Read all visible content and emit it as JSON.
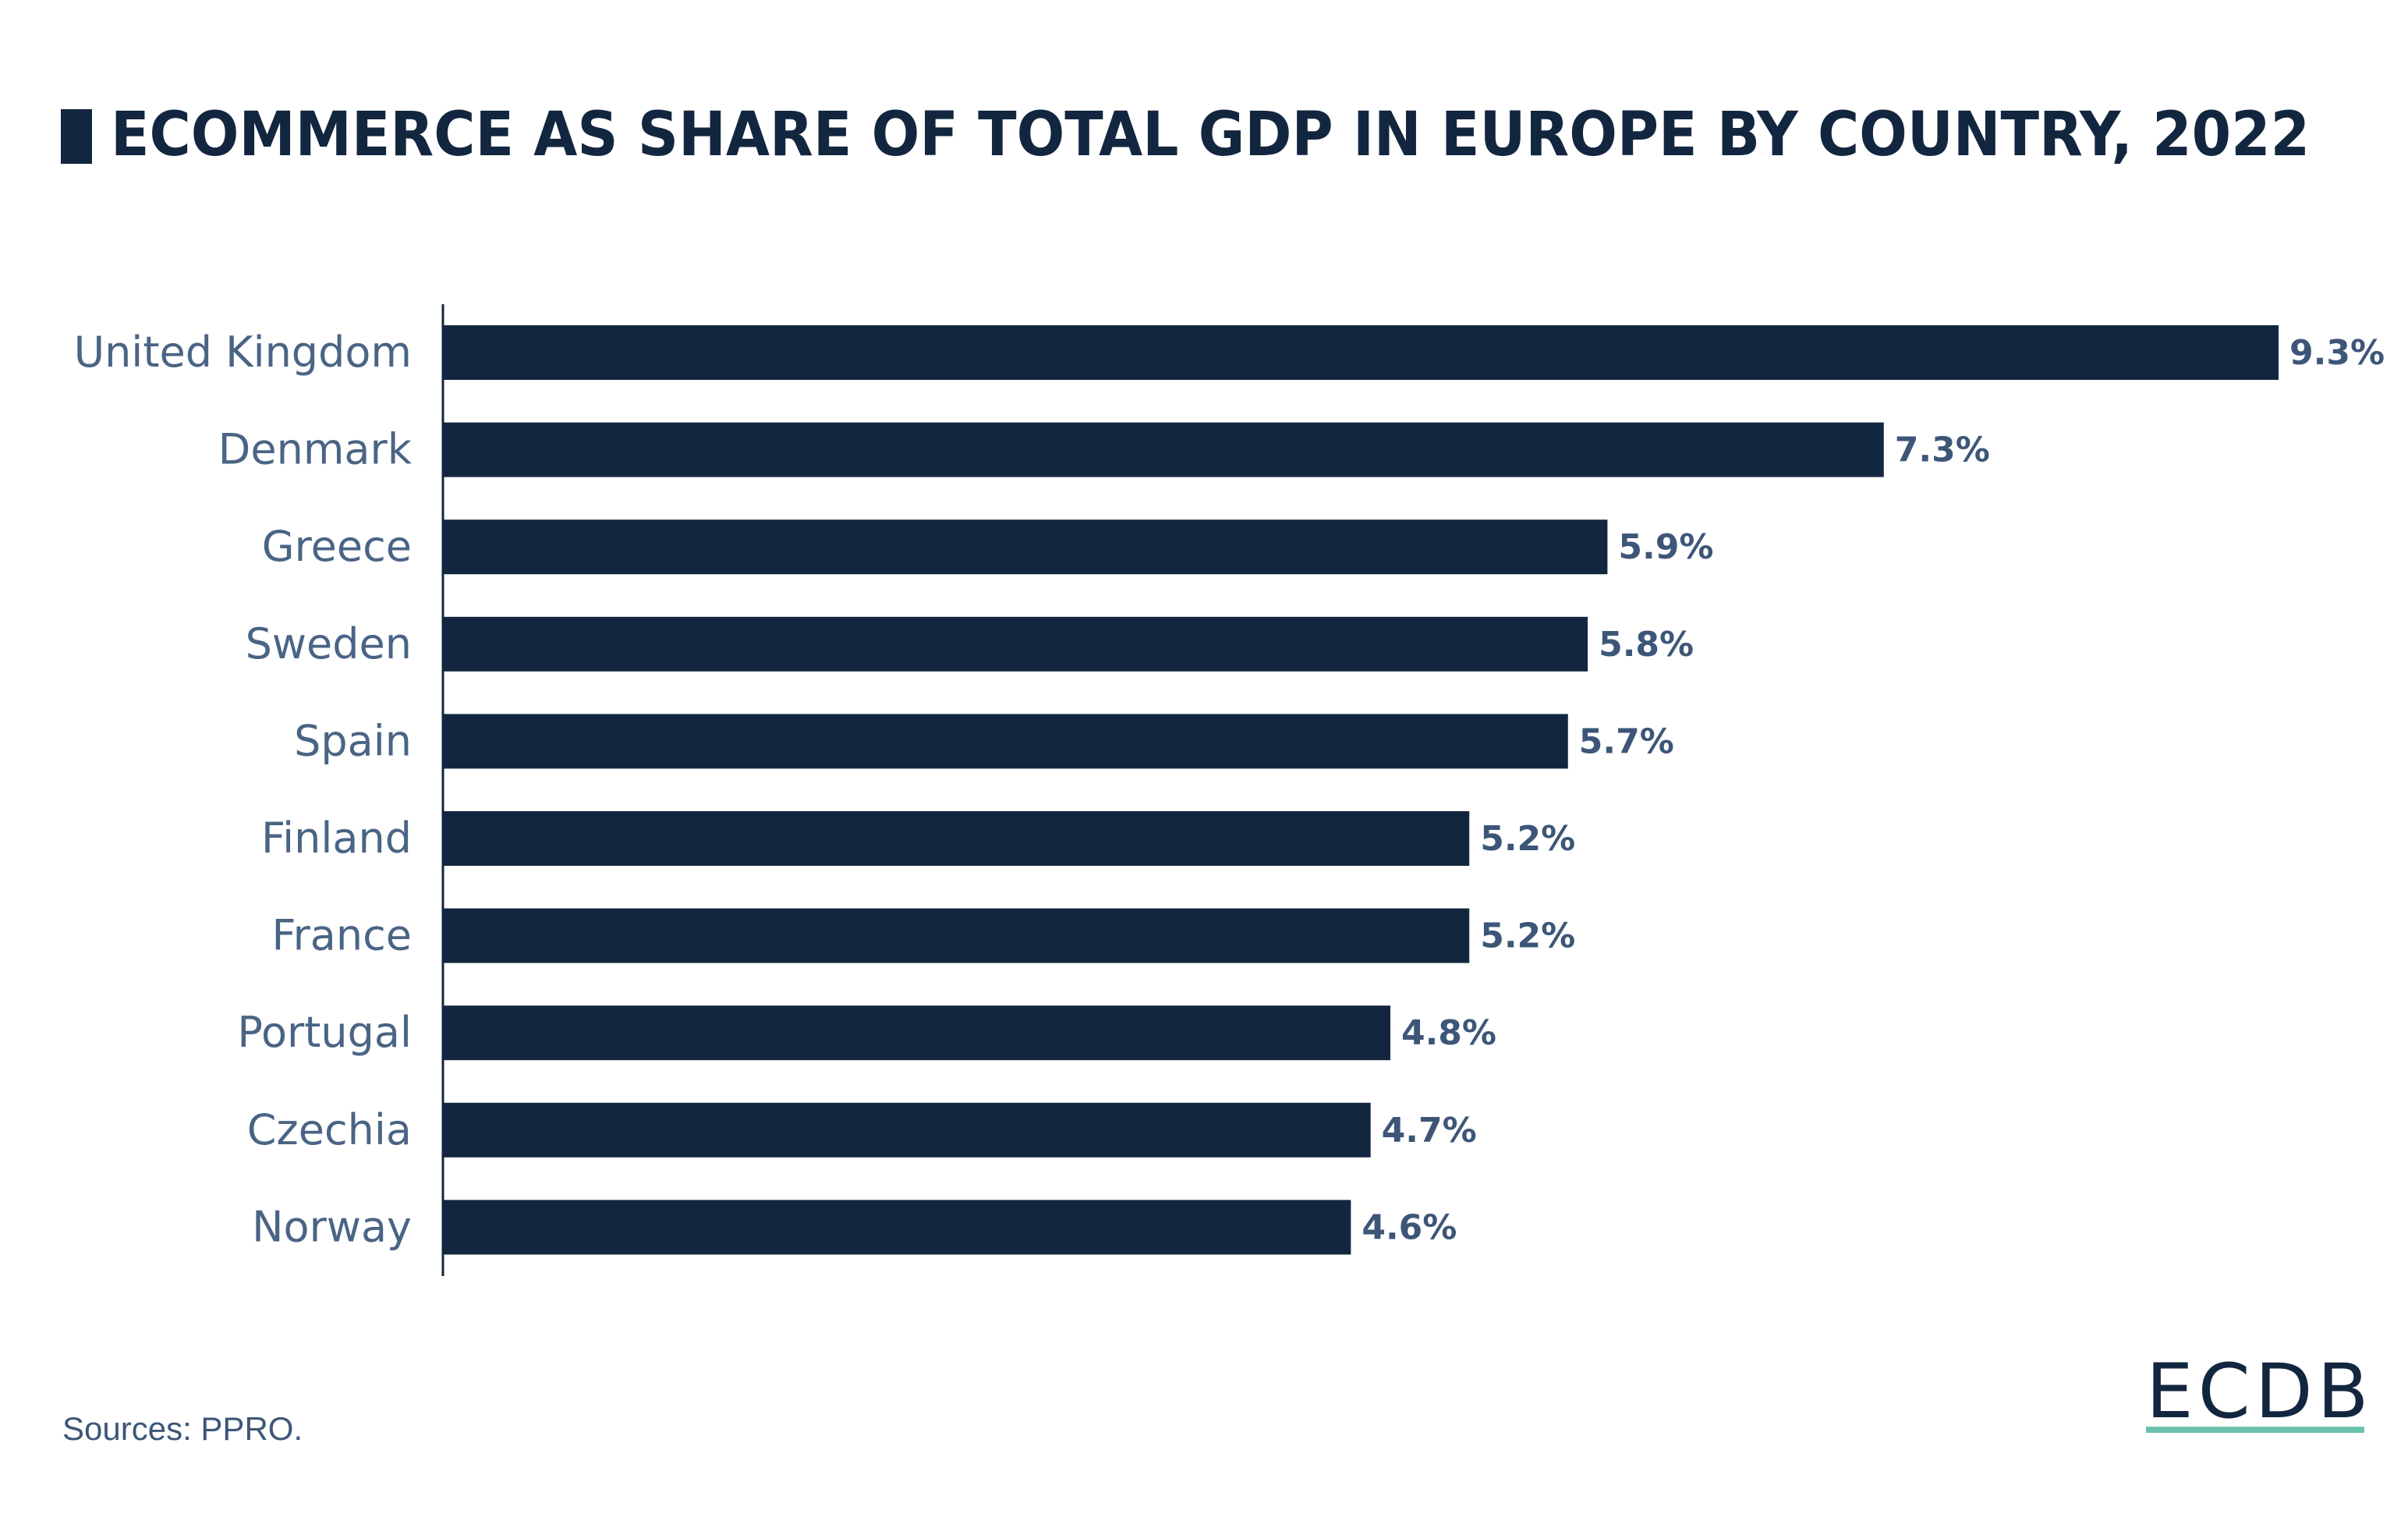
{
  "title": "ECOMMERCE AS SHARE OF TOTAL GDP IN EUROPE BY COUNTRY, 2022",
  "sources": "Sources: PPRO.",
  "logo": "ECDB",
  "colors": {
    "bar": "#13263f",
    "category_label": "#4a6485",
    "value_label": "#3d5678",
    "accent": "#6cc3ad"
  },
  "chart_data": {
    "type": "bar",
    "orientation": "horizontal",
    "title": "ECOMMERCE AS SHARE OF TOTAL GDP IN EUROPE BY COUNTRY, 2022",
    "categories": [
      "United Kingdom",
      "Denmark",
      "Greece",
      "Sweden",
      "Spain",
      "Finland",
      "France",
      "Portugal",
      "Czechia",
      "Norway"
    ],
    "values": [
      9.3,
      7.3,
      5.9,
      5.8,
      5.7,
      5.2,
      5.2,
      4.8,
      4.7,
      4.6
    ],
    "value_labels": [
      "9.3%",
      "7.3%",
      "5.9%",
      "5.8%",
      "5.7%",
      "5.2%",
      "5.2%",
      "4.8%",
      "4.7%",
      "4.6%"
    ],
    "unit": "%",
    "xlim": [
      0,
      9.3
    ],
    "grid": false,
    "legend": "none"
  }
}
